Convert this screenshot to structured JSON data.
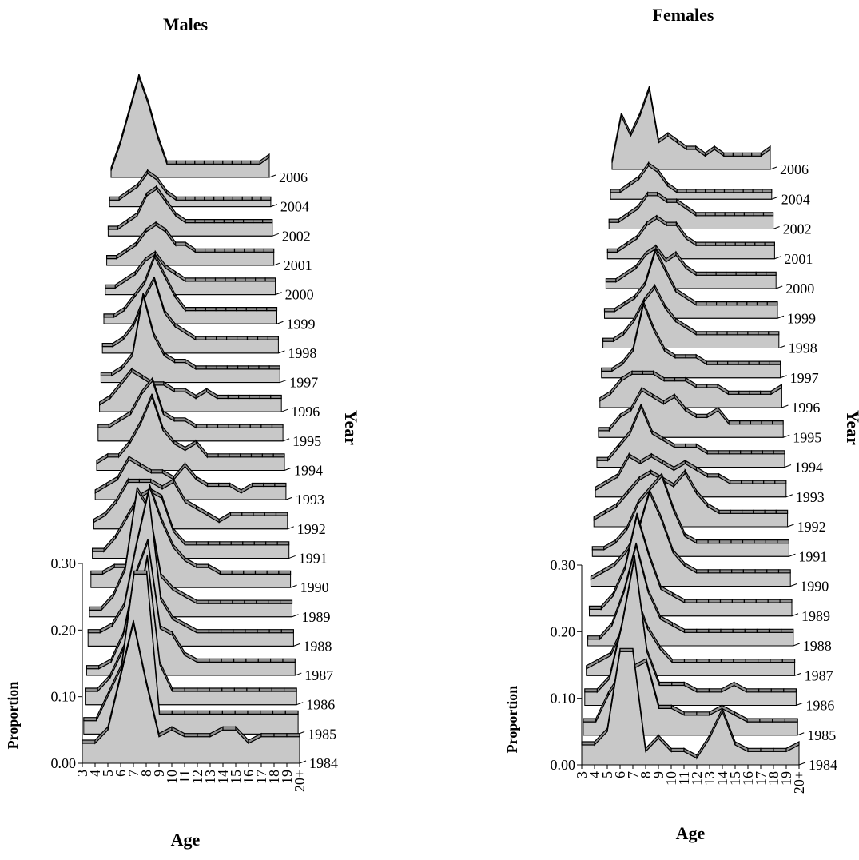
{
  "chart_data": [
    {
      "type": "area",
      "title": "Males",
      "xlabel": "Age",
      "ylabel": "Proportion",
      "zlabel": "Year",
      "ylim": [
        0,
        0.3
      ],
      "y_ticks": [
        "0.00",
        "0.10",
        "0.20",
        "0.30"
      ],
      "categories": [
        "3",
        "4",
        "5",
        "6",
        "7",
        "8",
        "9",
        "10",
        "11",
        "12",
        "13",
        "14",
        "15",
        "16",
        "17",
        "18",
        "19",
        "20+"
      ],
      "series": [
        {
          "name": "1984",
          "values": [
            0.03,
            0.03,
            0.05,
            0.13,
            0.21,
            0.12,
            0.04,
            0.05,
            0.04,
            0.04,
            0.04,
            0.05,
            0.05,
            0.03,
            0.04,
            0.04,
            0.04,
            0.04
          ]
        },
        {
          "name": "1985",
          "values": [
            0.02,
            0.02,
            0.06,
            0.1,
            0.24,
            0.24,
            0.03,
            0.03,
            0.03,
            0.03,
            0.03,
            0.03,
            0.03,
            0.03,
            0.03,
            0.03,
            0.03,
            0.03
          ]
        },
        {
          "name": "1986",
          "values": [
            0.02,
            0.02,
            0.04,
            0.08,
            0.12,
            0.22,
            0.06,
            0.02,
            0.02,
            0.02,
            0.02,
            0.02,
            0.02,
            0.02,
            0.02,
            0.02,
            0.02,
            0.02
          ]
        },
        {
          "name": "1987",
          "values": [
            0.01,
            0.01,
            0.02,
            0.06,
            0.15,
            0.2,
            0.07,
            0.06,
            0.03,
            0.02,
            0.02,
            0.02,
            0.02,
            0.02,
            0.02,
            0.02,
            0.02,
            0.02
          ]
        },
        {
          "name": "1988",
          "values": [
            0.02,
            0.02,
            0.03,
            0.06,
            0.15,
            0.23,
            0.07,
            0.04,
            0.03,
            0.02,
            0.02,
            0.02,
            0.02,
            0.02,
            0.02,
            0.02,
            0.02,
            0.02
          ]
        },
        {
          "name": "1989",
          "values": [
            0.01,
            0.01,
            0.03,
            0.07,
            0.19,
            0.16,
            0.06,
            0.04,
            0.03,
            0.02,
            0.02,
            0.02,
            0.02,
            0.02,
            0.02,
            0.02,
            0.02,
            0.02
          ]
        },
        {
          "name": "1990",
          "values": [
            0.02,
            0.02,
            0.03,
            0.03,
            0.06,
            0.15,
            0.1,
            0.06,
            0.04,
            0.03,
            0.03,
            0.02,
            0.02,
            0.02,
            0.02,
            0.02,
            0.02,
            0.02
          ]
        },
        {
          "name": "1991",
          "values": [
            0.01,
            0.01,
            0.03,
            0.06,
            0.09,
            0.1,
            0.09,
            0.04,
            0.02,
            0.02,
            0.02,
            0.02,
            0.02,
            0.02,
            0.02,
            0.02,
            0.02,
            0.02
          ]
        },
        {
          "name": "1992",
          "values": [
            0.01,
            0.02,
            0.04,
            0.07,
            0.07,
            0.07,
            0.06,
            0.07,
            0.04,
            0.03,
            0.02,
            0.01,
            0.02,
            0.02,
            0.02,
            0.02,
            0.02,
            0.02
          ]
        },
        {
          "name": "1993",
          "values": [
            0.01,
            0.02,
            0.03,
            0.06,
            0.05,
            0.04,
            0.04,
            0.03,
            0.05,
            0.03,
            0.02,
            0.02,
            0.02,
            0.01,
            0.02,
            0.02,
            0.02,
            0.02
          ]
        },
        {
          "name": "1994",
          "values": [
            0.01,
            0.02,
            0.02,
            0.04,
            0.07,
            0.11,
            0.06,
            0.04,
            0.03,
            0.04,
            0.02,
            0.02,
            0.02,
            0.02,
            0.02,
            0.02,
            0.02,
            0.02
          ]
        },
        {
          "name": "1995",
          "values": [
            0.02,
            0.02,
            0.03,
            0.04,
            0.07,
            0.09,
            0.04,
            0.03,
            0.03,
            0.02,
            0.02,
            0.02,
            0.02,
            0.02,
            0.02,
            0.02,
            0.02,
            0.02
          ]
        },
        {
          "name": "1996",
          "values": [
            0.01,
            0.02,
            0.04,
            0.06,
            0.05,
            0.04,
            0.04,
            0.03,
            0.03,
            0.02,
            0.03,
            0.02,
            0.02,
            0.02,
            0.02,
            0.02,
            0.02,
            0.02
          ]
        },
        {
          "name": "1997",
          "values": [
            0.01,
            0.01,
            0.02,
            0.04,
            0.13,
            0.07,
            0.04,
            0.03,
            0.03,
            0.02,
            0.02,
            0.02,
            0.02,
            0.02,
            0.02,
            0.02,
            0.02,
            0.02
          ]
        },
        {
          "name": "1998",
          "values": [
            0.01,
            0.01,
            0.02,
            0.04,
            0.08,
            0.11,
            0.06,
            0.04,
            0.03,
            0.02,
            0.02,
            0.02,
            0.02,
            0.02,
            0.02,
            0.02,
            0.02,
            0.02
          ]
        },
        {
          "name": "1999",
          "values": [
            0.01,
            0.01,
            0.02,
            0.04,
            0.06,
            0.1,
            0.07,
            0.04,
            0.02,
            0.02,
            0.02,
            0.02,
            0.02,
            0.02,
            0.02,
            0.02,
            0.02,
            0.02
          ]
        },
        {
          "name": "2000",
          "values": [
            0.01,
            0.01,
            0.02,
            0.03,
            0.05,
            0.06,
            0.04,
            0.03,
            0.02,
            0.02,
            0.02,
            0.02,
            0.02,
            0.02,
            0.02,
            0.02,
            0.02,
            0.02
          ]
        },
        {
          "name": "2001",
          "values": [
            0.01,
            0.01,
            0.02,
            0.03,
            0.05,
            0.06,
            0.05,
            0.03,
            0.03,
            0.02,
            0.02,
            0.02,
            0.02,
            0.02,
            0.02,
            0.02,
            0.02,
            0.02
          ]
        },
        {
          "name": "2002",
          "values": [
            0.01,
            0.01,
            0.02,
            0.03,
            0.06,
            0.07,
            0.05,
            0.03,
            0.02,
            0.02,
            0.02,
            0.02,
            0.02,
            0.02,
            0.02,
            0.02,
            0.02,
            0.02
          ]
        },
        {
          "name": "2004",
          "values": [
            0.01,
            0.01,
            0.02,
            0.03,
            0.05,
            0.04,
            0.02,
            0.01,
            0.01,
            0.01,
            0.01,
            0.01,
            0.01,
            0.01,
            0.01,
            0.01,
            0.01,
            0.01
          ]
        },
        {
          "name": "2006",
          "values": [
            0.01,
            0.05,
            0.1,
            0.15,
            0.11,
            0.06,
            0.02,
            0.02,
            0.02,
            0.02,
            0.02,
            0.02,
            0.02,
            0.02,
            0.02,
            0.02,
            0.02,
            0.03
          ]
        }
      ]
    },
    {
      "type": "area",
      "title": "Females",
      "xlabel": "Age",
      "ylabel": "Proportion",
      "zlabel": "Year",
      "ylim": [
        0,
        0.3
      ],
      "y_ticks": [
        "0.00",
        "0.10",
        "0.20",
        "0.30"
      ],
      "categories": [
        "3",
        "4",
        "5",
        "6",
        "7",
        "8",
        "9",
        "10",
        "11",
        "12",
        "13",
        "14",
        "15",
        "16",
        "17",
        "18",
        "19",
        "20+"
      ],
      "series": [
        {
          "name": "1984",
          "values": [
            0.03,
            0.03,
            0.05,
            0.17,
            0.17,
            0.02,
            0.04,
            0.02,
            0.02,
            0.01,
            0.04,
            0.08,
            0.03,
            0.02,
            0.02,
            0.02,
            0.02,
            0.03
          ]
        },
        {
          "name": "1985",
          "values": [
            0.02,
            0.02,
            0.06,
            0.09,
            0.1,
            0.11,
            0.04,
            0.04,
            0.03,
            0.03,
            0.03,
            0.04,
            0.03,
            0.02,
            0.02,
            0.02,
            0.02,
            0.02
          ]
        },
        {
          "name": "1986",
          "values": [
            0.02,
            0.02,
            0.04,
            0.12,
            0.22,
            0.08,
            0.03,
            0.03,
            0.03,
            0.02,
            0.02,
            0.02,
            0.03,
            0.02,
            0.02,
            0.02,
            0.02,
            0.02
          ]
        },
        {
          "name": "1987",
          "values": [
            0.01,
            0.02,
            0.03,
            0.07,
            0.12,
            0.07,
            0.04,
            0.02,
            0.02,
            0.02,
            0.02,
            0.02,
            0.02,
            0.02,
            0.02,
            0.02,
            0.02,
            0.02
          ]
        },
        {
          "name": "1988",
          "values": [
            0.01,
            0.01,
            0.03,
            0.08,
            0.15,
            0.08,
            0.04,
            0.03,
            0.02,
            0.02,
            0.02,
            0.02,
            0.02,
            0.02,
            0.02,
            0.02,
            0.02,
            0.02
          ]
        },
        {
          "name": "1989",
          "values": [
            0.01,
            0.01,
            0.03,
            0.07,
            0.15,
            0.09,
            0.04,
            0.03,
            0.02,
            0.02,
            0.02,
            0.02,
            0.02,
            0.02,
            0.02,
            0.02,
            0.02,
            0.02
          ]
        },
        {
          "name": "1990",
          "values": [
            0.01,
            0.02,
            0.03,
            0.05,
            0.08,
            0.14,
            0.1,
            0.05,
            0.03,
            0.02,
            0.02,
            0.02,
            0.02,
            0.02,
            0.02,
            0.02,
            0.02,
            0.02
          ]
        },
        {
          "name": "1991",
          "values": [
            0.01,
            0.01,
            0.02,
            0.04,
            0.08,
            0.1,
            0.12,
            0.07,
            0.03,
            0.02,
            0.02,
            0.02,
            0.02,
            0.02,
            0.02,
            0.02,
            0.02,
            0.02
          ]
        },
        {
          "name": "1992",
          "values": [
            0.01,
            0.02,
            0.03,
            0.05,
            0.07,
            0.08,
            0.07,
            0.06,
            0.08,
            0.05,
            0.03,
            0.02,
            0.02,
            0.02,
            0.02,
            0.02,
            0.02,
            0.02
          ]
        },
        {
          "name": "1993",
          "values": [
            0.01,
            0.02,
            0.03,
            0.06,
            0.05,
            0.06,
            0.05,
            0.04,
            0.05,
            0.04,
            0.03,
            0.03,
            0.02,
            0.02,
            0.02,
            0.02,
            0.02,
            0.02
          ]
        },
        {
          "name": "1994",
          "values": [
            0.01,
            0.01,
            0.03,
            0.05,
            0.09,
            0.05,
            0.04,
            0.03,
            0.03,
            0.03,
            0.02,
            0.02,
            0.02,
            0.02,
            0.02,
            0.02,
            0.02,
            0.02
          ]
        },
        {
          "name": "1995",
          "values": [
            0.01,
            0.01,
            0.03,
            0.04,
            0.07,
            0.06,
            0.05,
            0.06,
            0.04,
            0.03,
            0.03,
            0.04,
            0.02,
            0.02,
            0.02,
            0.02,
            0.02,
            0.02
          ]
        },
        {
          "name": "1996",
          "values": [
            0.01,
            0.02,
            0.04,
            0.05,
            0.05,
            0.05,
            0.04,
            0.04,
            0.04,
            0.03,
            0.03,
            0.03,
            0.02,
            0.02,
            0.02,
            0.02,
            0.02,
            0.03
          ]
        },
        {
          "name": "1997",
          "values": [
            0.01,
            0.01,
            0.02,
            0.04,
            0.11,
            0.07,
            0.04,
            0.03,
            0.03,
            0.03,
            0.02,
            0.02,
            0.02,
            0.02,
            0.02,
            0.02,
            0.02,
            0.02
          ]
        },
        {
          "name": "1998",
          "values": [
            0.01,
            0.01,
            0.02,
            0.04,
            0.07,
            0.09,
            0.06,
            0.04,
            0.03,
            0.02,
            0.02,
            0.02,
            0.02,
            0.02,
            0.02,
            0.02,
            0.02,
            0.02
          ]
        },
        {
          "name": "1999",
          "values": [
            0.01,
            0.01,
            0.02,
            0.03,
            0.05,
            0.1,
            0.07,
            0.04,
            0.03,
            0.02,
            0.02,
            0.02,
            0.02,
            0.02,
            0.02,
            0.02,
            0.02,
            0.02
          ]
        },
        {
          "name": "2000",
          "values": [
            0.01,
            0.01,
            0.02,
            0.03,
            0.05,
            0.06,
            0.04,
            0.05,
            0.03,
            0.02,
            0.02,
            0.02,
            0.02,
            0.02,
            0.02,
            0.02,
            0.02,
            0.02
          ]
        },
        {
          "name": "2001",
          "values": [
            0.01,
            0.01,
            0.02,
            0.03,
            0.05,
            0.06,
            0.05,
            0.05,
            0.03,
            0.02,
            0.02,
            0.02,
            0.02,
            0.02,
            0.02,
            0.02,
            0.02,
            0.02
          ]
        },
        {
          "name": "2002",
          "values": [
            0.01,
            0.01,
            0.02,
            0.03,
            0.05,
            0.05,
            0.04,
            0.04,
            0.03,
            0.02,
            0.02,
            0.02,
            0.02,
            0.02,
            0.02,
            0.02,
            0.02,
            0.02
          ]
        },
        {
          "name": "2004",
          "values": [
            0.01,
            0.01,
            0.02,
            0.03,
            0.05,
            0.04,
            0.02,
            0.01,
            0.01,
            0.01,
            0.01,
            0.01,
            0.01,
            0.01,
            0.01,
            0.01,
            0.01,
            0.01
          ]
        },
        {
          "name": "2006",
          "values": [
            0.01,
            0.08,
            0.05,
            0.08,
            0.12,
            0.04,
            0.05,
            0.04,
            0.03,
            0.03,
            0.02,
            0.03,
            0.02,
            0.02,
            0.02,
            0.02,
            0.02,
            0.03
          ]
        }
      ]
    }
  ],
  "colors": {
    "area_fill": "#c8c8c8",
    "side_fill": "#8f8f8f",
    "stroke": "#000000",
    "background": "#ffffff"
  }
}
